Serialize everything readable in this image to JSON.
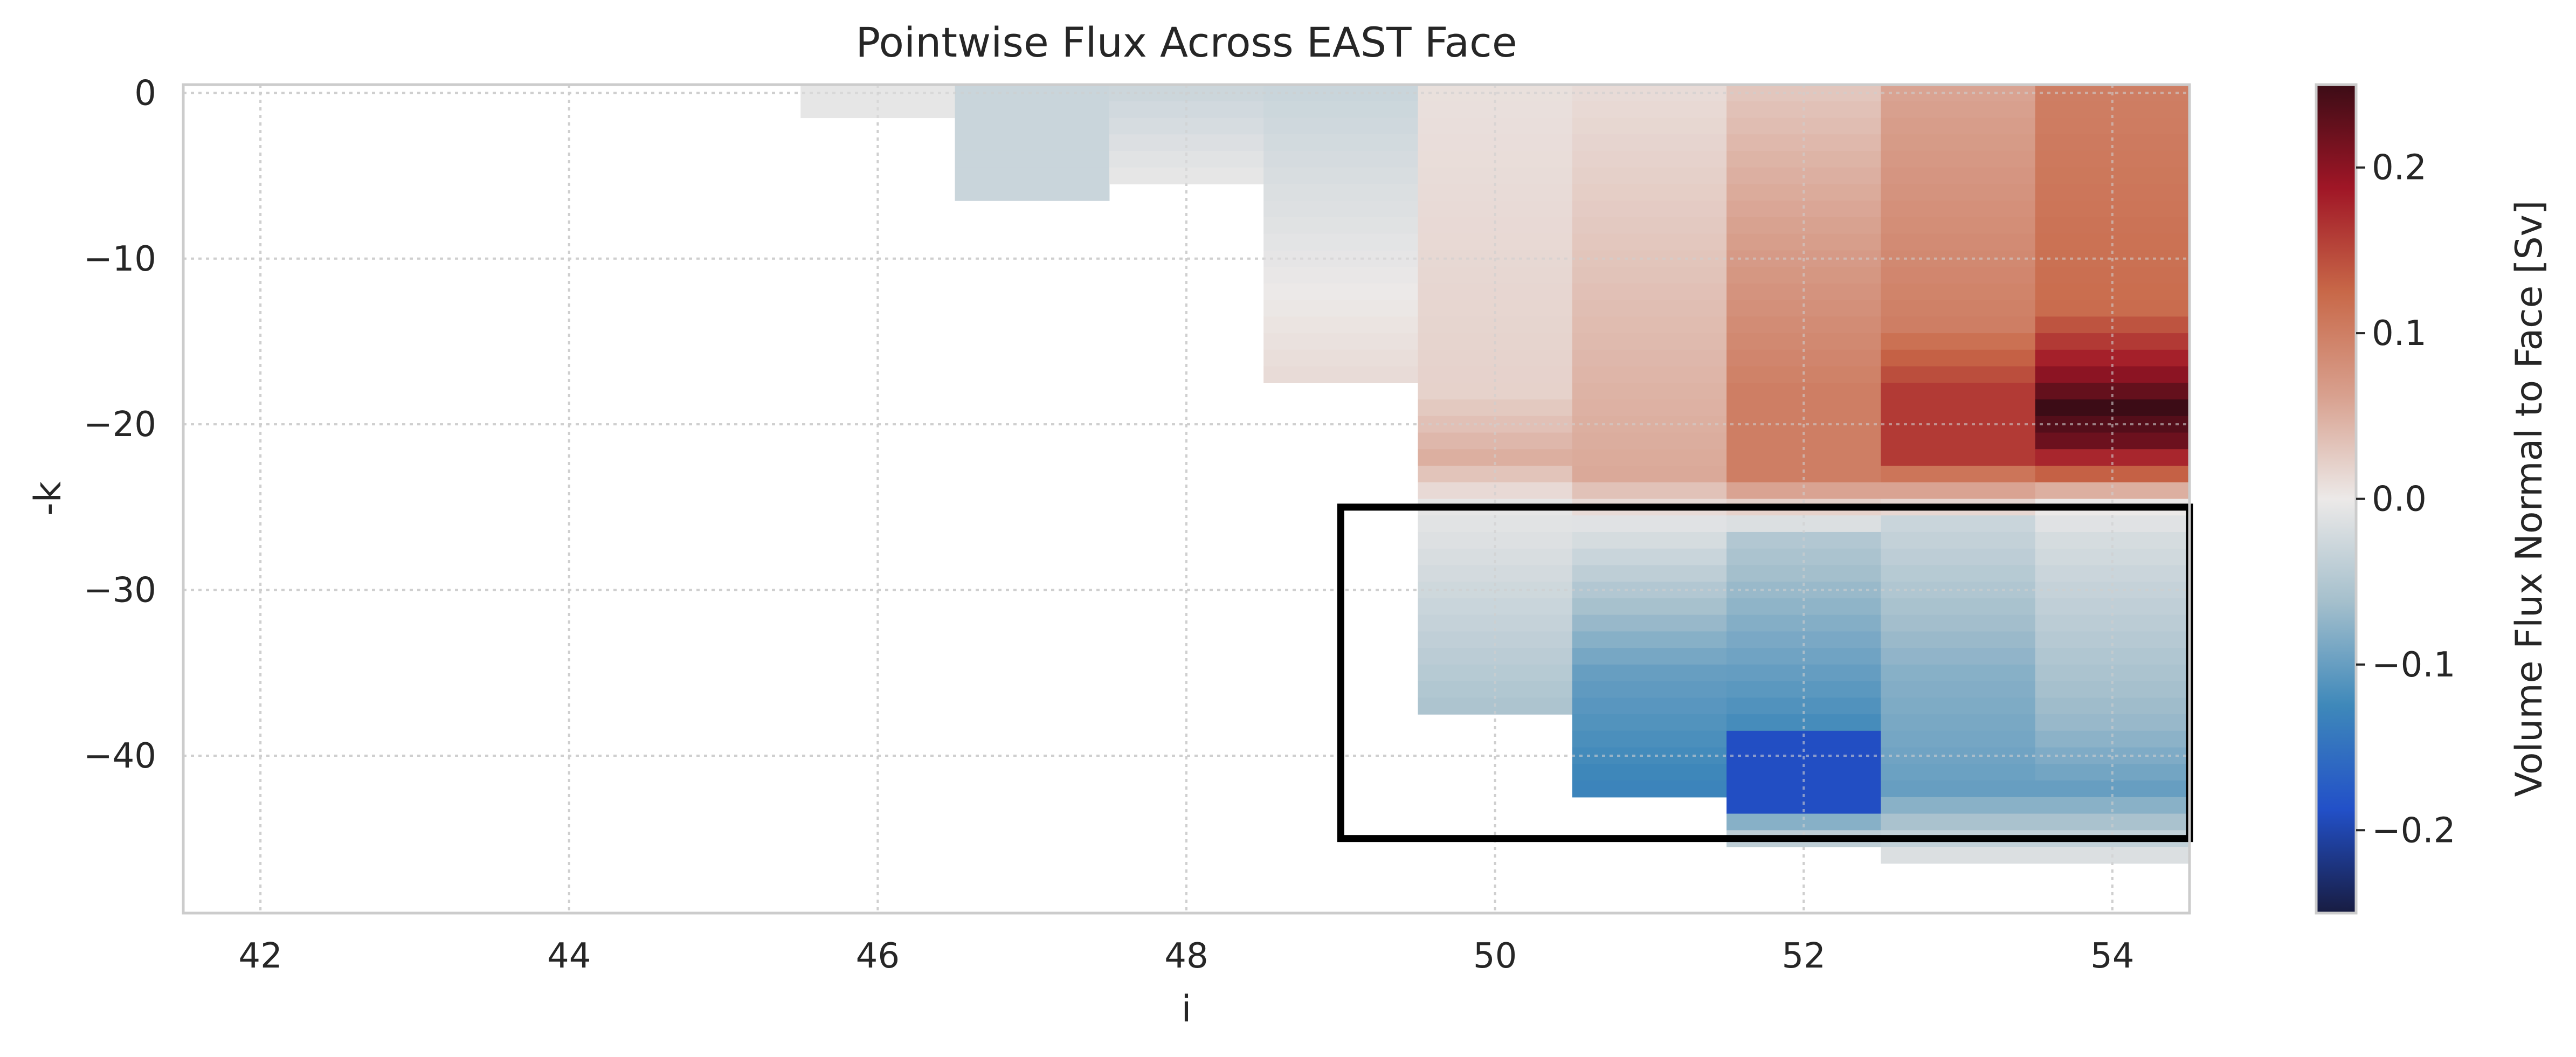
{
  "chart_data": {
    "type": "heatmap",
    "title": "Pointwise Flux Across EAST Face",
    "xlabel": "i",
    "ylabel": "-k",
    "xlim": [
      41.5,
      54.5
    ],
    "ylim": [
      -49.5,
      0.5
    ],
    "x_ticks": [
      42,
      44,
      46,
      48,
      50,
      52,
      54
    ],
    "x_tick_labels": [
      "42",
      "44",
      "46",
      "48",
      "50",
      "52",
      "54"
    ],
    "y_ticks": [
      0,
      -10,
      -20,
      -30,
      -40
    ],
    "y_tick_labels": [
      "0",
      "−10",
      "−20",
      "−30",
      "−40"
    ],
    "grid": true,
    "colorbar": {
      "label": "Volume Flux Normal to Face [Sv]",
      "range": [
        -0.25,
        0.25
      ],
      "ticks": [
        -0.2,
        -0.1,
        0.0,
        0.1,
        0.2
      ],
      "tick_labels": [
        "−0.2",
        "−0.1",
        "0.0",
        "0.1",
        "0.2"
      ],
      "colormap": "balance (blue-white-red)"
    },
    "highlight_box": {
      "i_range": [
        49,
        54.5
      ],
      "k_range": [
        -45,
        -25
      ],
      "color": "#000000"
    },
    "columns": [
      {
        "i": 46,
        "k_min": -1,
        "top": -0.005,
        "bottom": -0.005,
        "extrema": null
      },
      {
        "i": 47,
        "k_min": -6,
        "top": -0.03,
        "bottom": -0.03,
        "extrema": null
      },
      {
        "i": 48,
        "k_min": -5,
        "top": -0.028,
        "bottom": -0.005,
        "extrema": null
      },
      {
        "i": 49,
        "k_min": -17,
        "top": -0.03,
        "bottom": 0.012,
        "extrema": null
      },
      {
        "i": 50,
        "k_min": -37,
        "top": 0.008,
        "bottom": -0.055,
        "extrema": [
          [
            -18,
            0.02
          ],
          [
            -22,
            0.05
          ],
          [
            -25,
            -0.005
          ]
        ]
      },
      {
        "i": 51,
        "k_min": -42,
        "top": 0.012,
        "bottom": -0.13,
        "extrema": [
          [
            -20,
            0.05
          ],
          [
            -23,
            0.055
          ],
          [
            -26,
            -0.01
          ],
          [
            -35,
            -0.1
          ]
        ]
      },
      {
        "i": 52,
        "k_min": -45,
        "top": 0.03,
        "bottom": -0.04,
        "extrema": [
          [
            -18,
            0.1
          ],
          [
            -23,
            0.1
          ],
          [
            -25,
            0.02
          ],
          [
            -27,
            -0.05
          ],
          [
            -38,
            -0.12
          ],
          [
            -39,
            -0.19
          ],
          [
            -43,
            -0.19
          ],
          [
            -44,
            -0.08
          ]
        ]
      },
      {
        "i": 53,
        "k_min": -46,
        "top": 0.06,
        "bottom": -0.015,
        "extrema": [
          [
            -14,
            0.1
          ],
          [
            -18,
            0.16
          ],
          [
            -22,
            0.16
          ],
          [
            -24,
            0.06
          ],
          [
            -26,
            -0.03
          ],
          [
            -35,
            -0.08
          ],
          [
            -42,
            -0.1
          ]
        ]
      },
      {
        "i": 54,
        "k_min": -46,
        "top": 0.1,
        "bottom": -0.015,
        "extrema": [
          [
            -13,
            0.12
          ],
          [
            -17,
            0.2
          ],
          [
            -19,
            0.25
          ],
          [
            -21,
            0.22
          ],
          [
            -23,
            0.13
          ],
          [
            -24,
            0.05
          ],
          [
            -25,
            0.0
          ],
          [
            -27,
            -0.02
          ],
          [
            -38,
            -0.07
          ],
          [
            -42,
            -0.1
          ]
        ]
      }
    ]
  }
}
